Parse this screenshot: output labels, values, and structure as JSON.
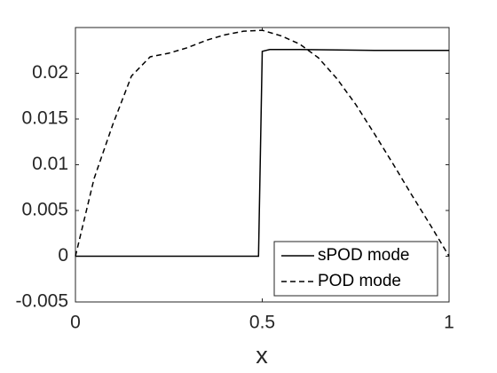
{
  "chart_data": {
    "type": "line",
    "xlabel": "x",
    "xlim": [
      0,
      1
    ],
    "xticks": [
      0,
      0.5,
      1
    ],
    "ylim": [
      -0.005,
      0.025
    ],
    "yticks": [
      -0.005,
      0,
      0.005,
      0.01,
      0.015,
      0.02
    ],
    "legend": "southeast",
    "series": [
      {
        "name": "sPOD mode",
        "color": "#000000",
        "dash": "solid",
        "x": [
          0,
          0.49,
          0.495,
          0.5,
          0.52,
          0.6,
          0.8,
          1
        ],
        "values": [
          0,
          0,
          0.0112,
          0.0224,
          0.0226,
          0.0226,
          0.0225,
          0.0225
        ]
      },
      {
        "name": "POD mode",
        "color": "#000000",
        "dash": "dashed",
        "x": [
          0,
          0.05,
          0.1,
          0.15,
          0.2,
          0.25,
          0.3,
          0.35,
          0.4,
          0.45,
          0.5,
          0.55,
          0.6,
          0.65,
          0.7,
          0.75,
          0.8,
          0.85,
          0.9,
          0.95,
          1
        ],
        "values": [
          0,
          0.0085,
          0.0144,
          0.0197,
          0.0218,
          0.0222,
          0.0228,
          0.0236,
          0.0242,
          0.0246,
          0.0247,
          0.0241,
          0.0232,
          0.0217,
          0.0194,
          0.0166,
          0.0134,
          0.0101,
          0.0067,
          0.0034,
          0
        ]
      }
    ]
  }
}
